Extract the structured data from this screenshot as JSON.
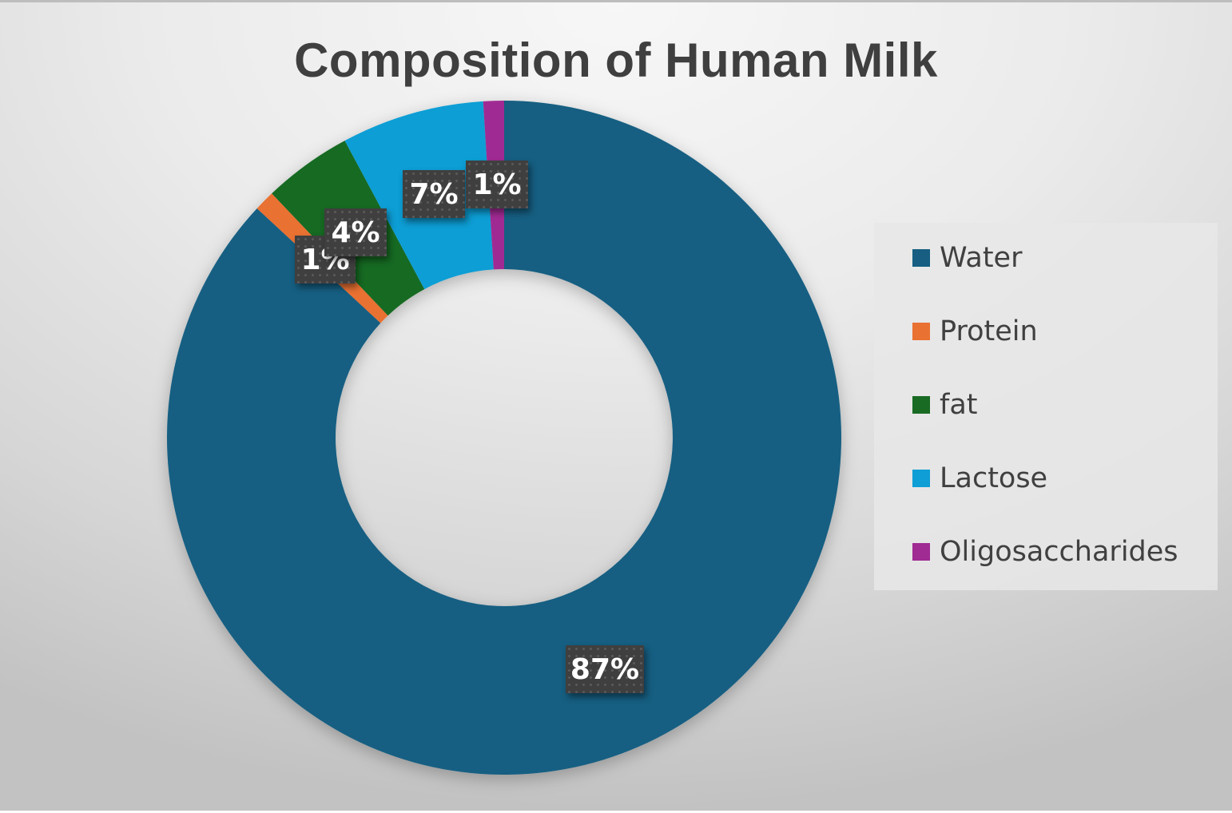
{
  "chart_data": {
    "type": "pie",
    "subtype": "donut",
    "title": "Composition of Human Milk",
    "categories": [
      "Water",
      "Protein",
      "fat",
      "Lactose",
      "Oligosaccharides"
    ],
    "values": [
      87,
      1,
      4,
      7,
      1
    ],
    "data_labels": [
      "87%",
      "1%",
      "4%",
      "7%",
      "1%"
    ],
    "colors": [
      "#175e82",
      "#e97132",
      "#196b24",
      "#0f9ed5",
      "#a02b93"
    ],
    "legend_position": "right",
    "hole_ratio": 0.5
  },
  "title": "Composition of Human Milk",
  "legend": {
    "items": [
      {
        "label": "Water",
        "color": "#175e82"
      },
      {
        "label": "Protein",
        "color": "#e97132"
      },
      {
        "label": "fat",
        "color": "#196b24"
      },
      {
        "label": "Lactose",
        "color": "#0f9ed5"
      },
      {
        "label": "Oligosaccharides",
        "color": "#a02b93"
      }
    ]
  },
  "labels": {
    "water": "87%",
    "protein": "1%",
    "fat": "4%",
    "lactose": "7%",
    "oligo": "1%"
  }
}
